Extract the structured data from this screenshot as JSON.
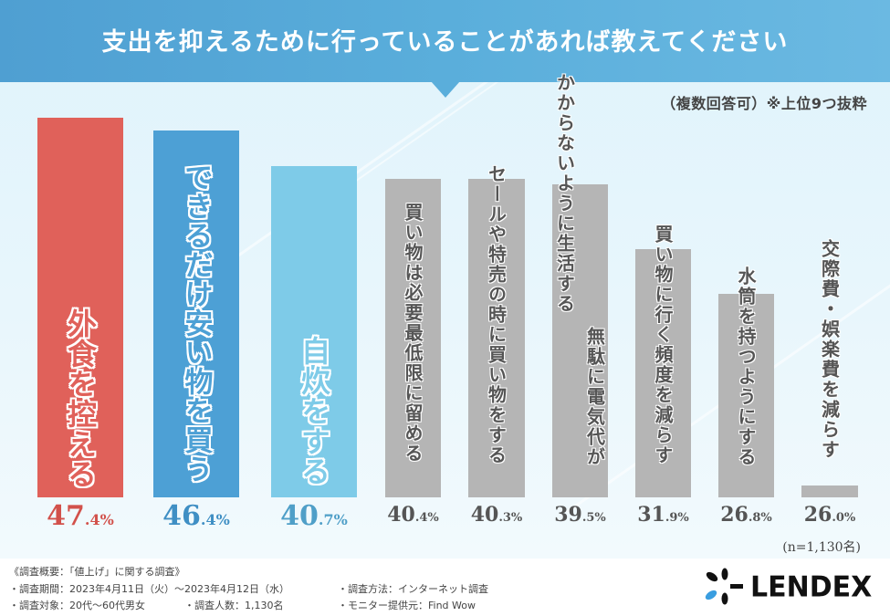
{
  "header": {
    "title": "支出を抑えるために行っていることがあれば教えてください"
  },
  "note": "（複数回答可）※上位9つ抜粋",
  "sample_size": "(n=1,130名)",
  "colors": {
    "header": "#5aaedb",
    "bar_top1": "#e0615a",
    "bar_top2": "#4da0d5",
    "bar_top3": "#7ecbe8",
    "bar_other": "#b5b5b5",
    "pct_top1": "#d2514b",
    "pct_top2": "#3f8fc4",
    "pct_top3": "#4f9fc8",
    "pct_other": "#555555",
    "logo_accent": "#3a9ee0"
  },
  "chart_data": {
    "type": "bar",
    "title": "支出を抑えるために行っていることがあれば教えてください",
    "subtitle": "（複数回答可）※上位9つ抜粋",
    "xlabel": "",
    "ylabel": "",
    "unit": "%",
    "categories": [
      "外食を控える",
      "できるだけ安い物を買う",
      "自炊をする",
      "買い物は必要最低限に留める",
      "セールや特売の時に買い物をする",
      "無駄に電気代がかからないように生活する",
      "買い物に行く頻度を減らす",
      "水筒を持つようにする",
      "交際費・娯楽費を減らす"
    ],
    "label_lines": [
      [
        "外食を控える"
      ],
      [
        "できるだけ安い物を買う"
      ],
      [
        "自炊をする"
      ],
      [
        "買い物は必要最低限に留める"
      ],
      [
        "セールや特売の時に買い物をする"
      ],
      [
        "無駄に電気代が",
        "かからないように生活する"
      ],
      [
        "買い物に行く頻度を減らす"
      ],
      [
        "水筒を持つようにする"
      ],
      [
        "交際費・娯楽費を減らす"
      ]
    ],
    "values": [
      47.4,
      46.4,
      40.7,
      40.4,
      40.3,
      39.5,
      31.9,
      26.8,
      26.0
    ],
    "value_labels": [
      {
        "int": "47",
        "dec": ".4%"
      },
      {
        "int": "46",
        "dec": ".4%"
      },
      {
        "int": "40",
        "dec": ".7%"
      },
      {
        "int": "40",
        "dec": ".4%"
      },
      {
        "int": "40",
        "dec": ".3%"
      },
      {
        "int": "39",
        "dec": ".5%"
      },
      {
        "int": "31",
        "dec": ".9%"
      },
      {
        "int": "26",
        "dec": ".8%"
      },
      {
        "int": "26",
        "dec": ".0%"
      }
    ],
    "legend": "none",
    "grid": false
  },
  "footer": {
    "heading": "《調査概要：「値上げ」に関する調査》",
    "period": "・調査期間：2023年4月11日（火）～2023年4月12日（水）",
    "method": "・調査方法：インターネット調査",
    "target": "・調査対象：20代～60代男女",
    "respondents": "・調査人数：1,130名",
    "provider": "・モニター提供元：Find Wow"
  },
  "logo": {
    "text": "LENDEX"
  }
}
